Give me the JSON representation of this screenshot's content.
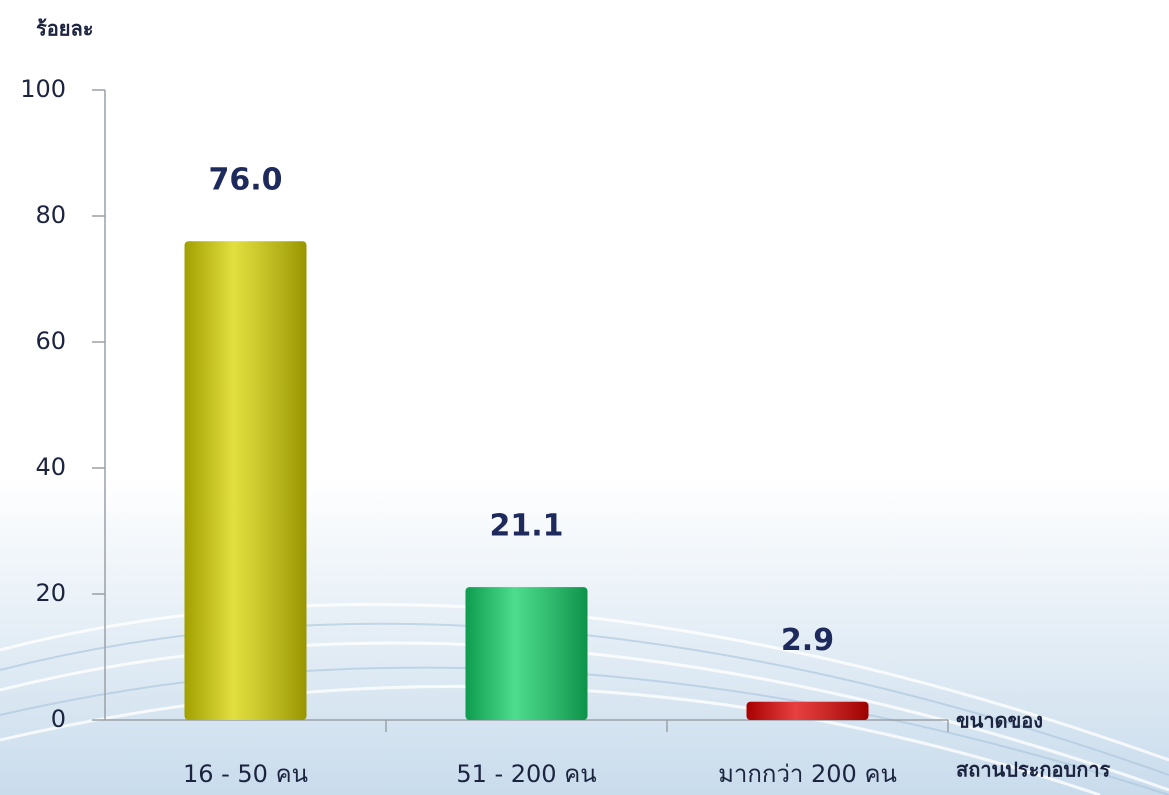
{
  "chart_data": {
    "type": "bar",
    "y_label": "ร้อยละ",
    "x_label": [
      "ขนาดของ",
      "สถานประกอบการ"
    ],
    "categories": [
      "16 - 50 คน",
      "51 - 200 คน",
      "มากกว่า 200 คน"
    ],
    "values": [
      76.0,
      21.1,
      2.9
    ],
    "value_labels": [
      "76.0",
      "21.1",
      "2.9"
    ],
    "colors": [
      "#d8d400",
      "#12d068",
      "#e00000"
    ],
    "ylim": [
      0,
      100
    ],
    "yticks": [
      0,
      20,
      40,
      60,
      80,
      100
    ],
    "grid": false
  }
}
